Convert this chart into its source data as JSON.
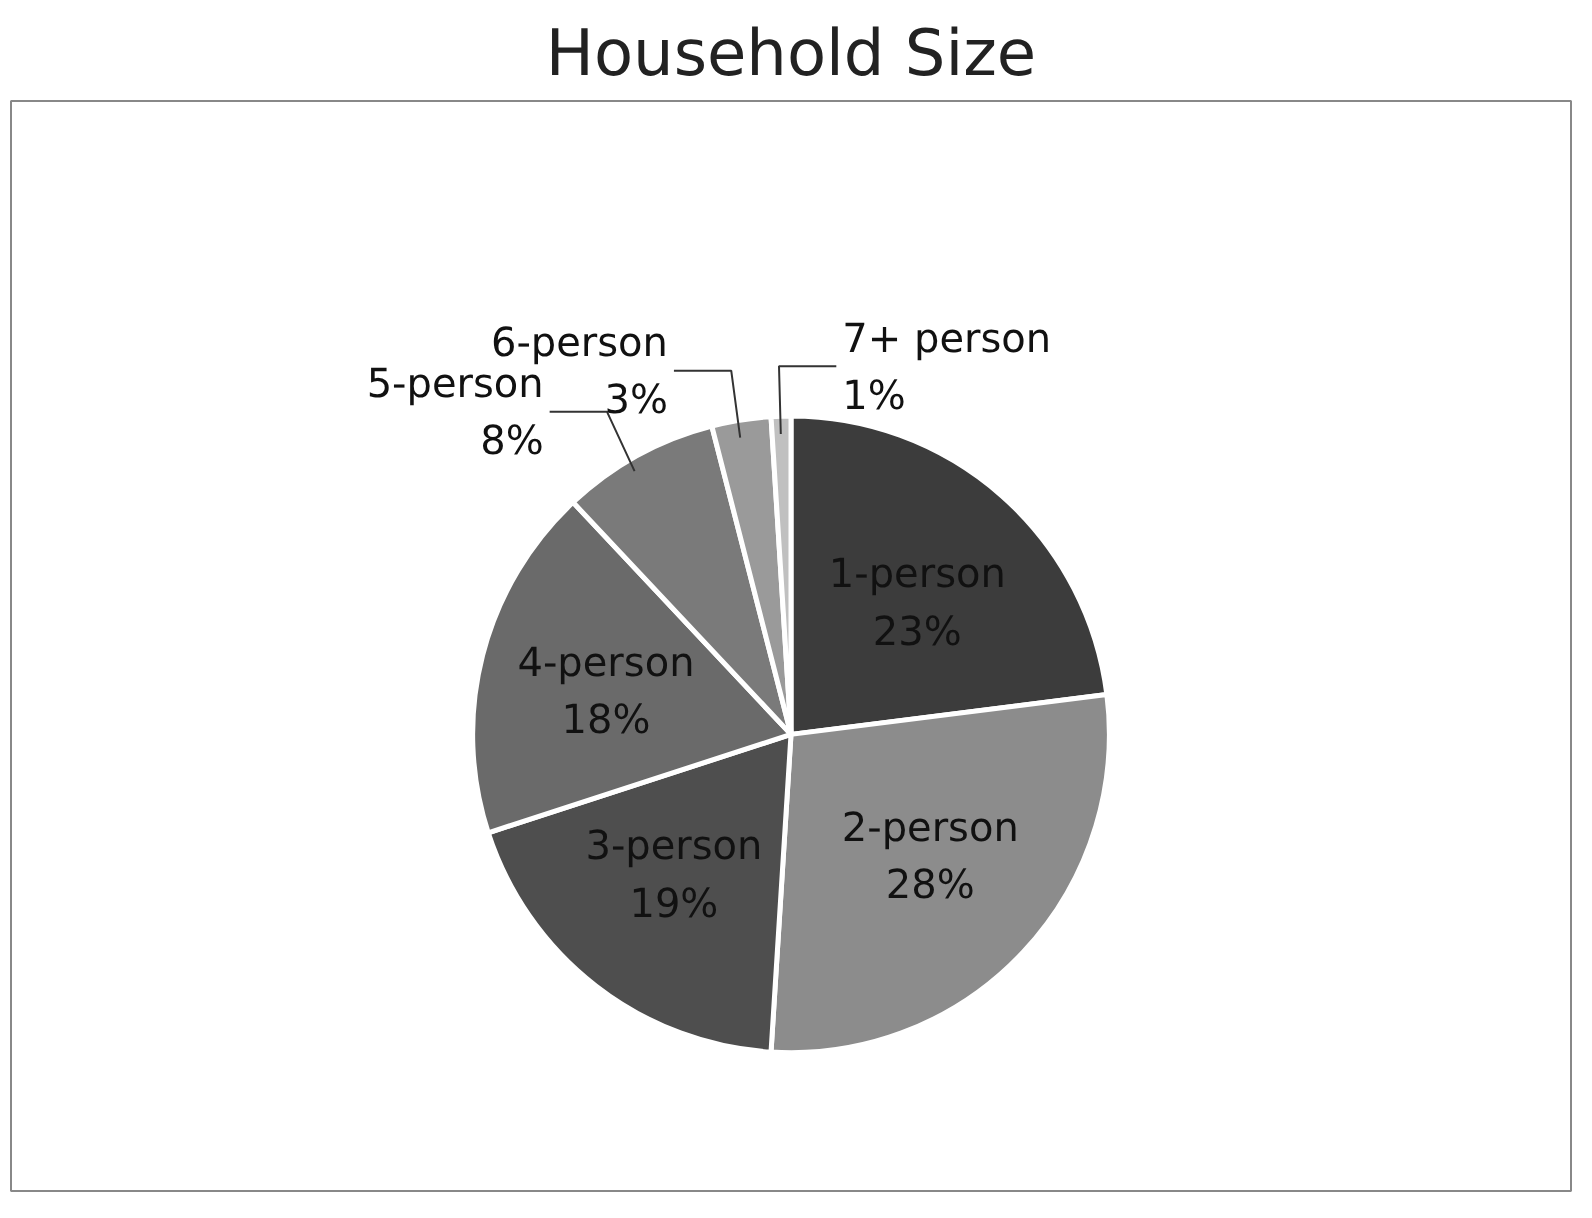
{
  "chart_data": {
    "type": "pie",
    "title": "Household Size",
    "categories": [
      "1-person",
      "2-person",
      "3-person",
      "4-person",
      "5-person",
      "6-person",
      "7+ person"
    ],
    "values": [
      23,
      28,
      19,
      18,
      8,
      3,
      1
    ],
    "colors": [
      "#3c3c3c",
      "#8c8c8c",
      "#4e4e4e",
      "#6a6a6a",
      "#7a7a7a",
      "#9a9a9a",
      "#c0c0c0"
    ],
    "value_labels": [
      "23%",
      "28%",
      "19%",
      "18%",
      "8%",
      "3%",
      "1%"
    ]
  }
}
